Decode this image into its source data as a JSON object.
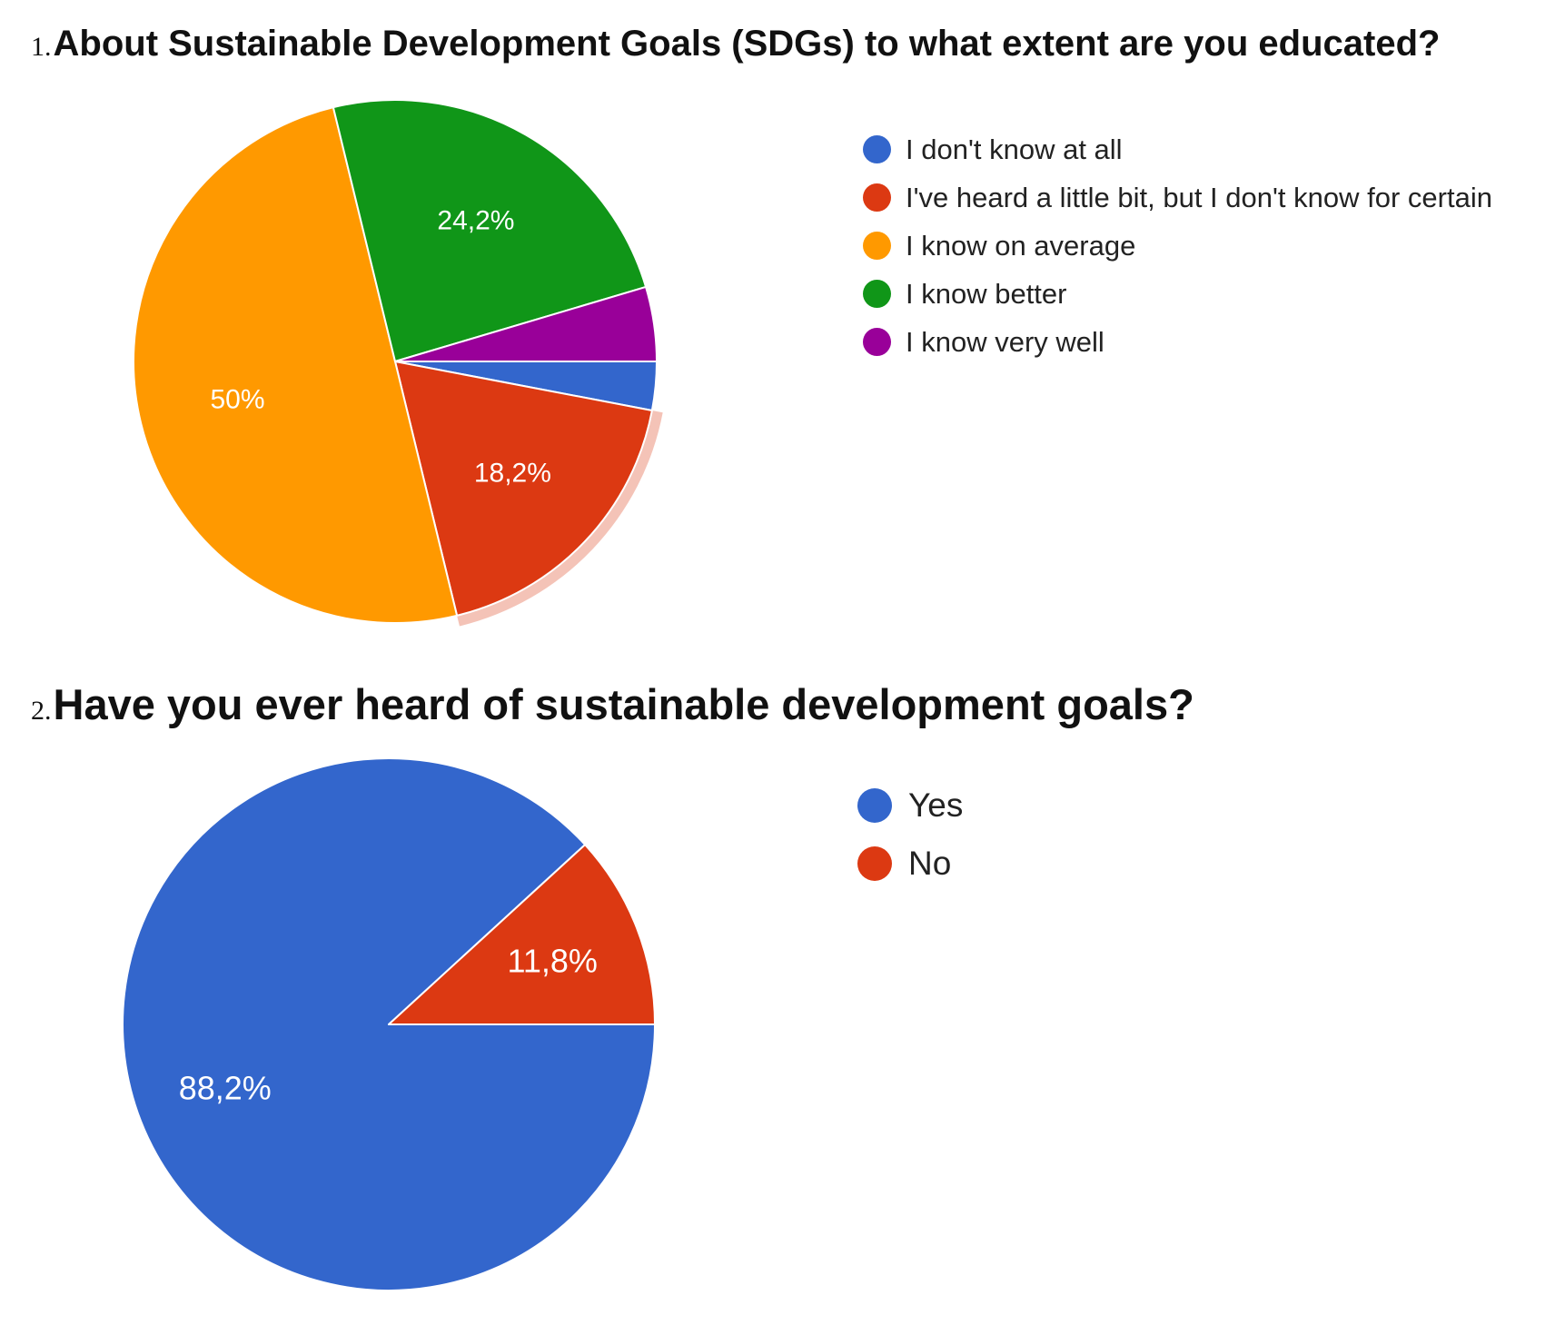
{
  "chart_data": [
    {
      "type": "pie",
      "title_number": "1.",
      "title": "About Sustainable Development Goals (SDGs) to what extent are you educated?",
      "legend_position": "right",
      "slices": [
        {
          "label": "I don't know at all",
          "value": 3.0,
          "color": "#3366cc",
          "display": ""
        },
        {
          "label": "I've heard a little bit, but I don't know for certain",
          "value": 18.2,
          "color": "#dc3912",
          "display": "18,2%"
        },
        {
          "label": "I know on average",
          "value": 50.0,
          "color": "#ff9900",
          "display": "50%"
        },
        {
          "label": "I know better",
          "value": 24.2,
          "color": "#109618",
          "display": "24,2%"
        },
        {
          "label": "I know very well",
          "value": 4.6,
          "color": "#990099",
          "display": ""
        }
      ]
    },
    {
      "type": "pie",
      "title_number": "2.",
      "title": "Have you ever heard of sustainable development goals?",
      "legend_position": "right",
      "slices": [
        {
          "label": "Yes",
          "value": 88.2,
          "color": "#3366cc",
          "display": "88,2%"
        },
        {
          "label": "No",
          "value": 11.8,
          "color": "#dc3912",
          "display": "11,8%"
        }
      ]
    }
  ]
}
